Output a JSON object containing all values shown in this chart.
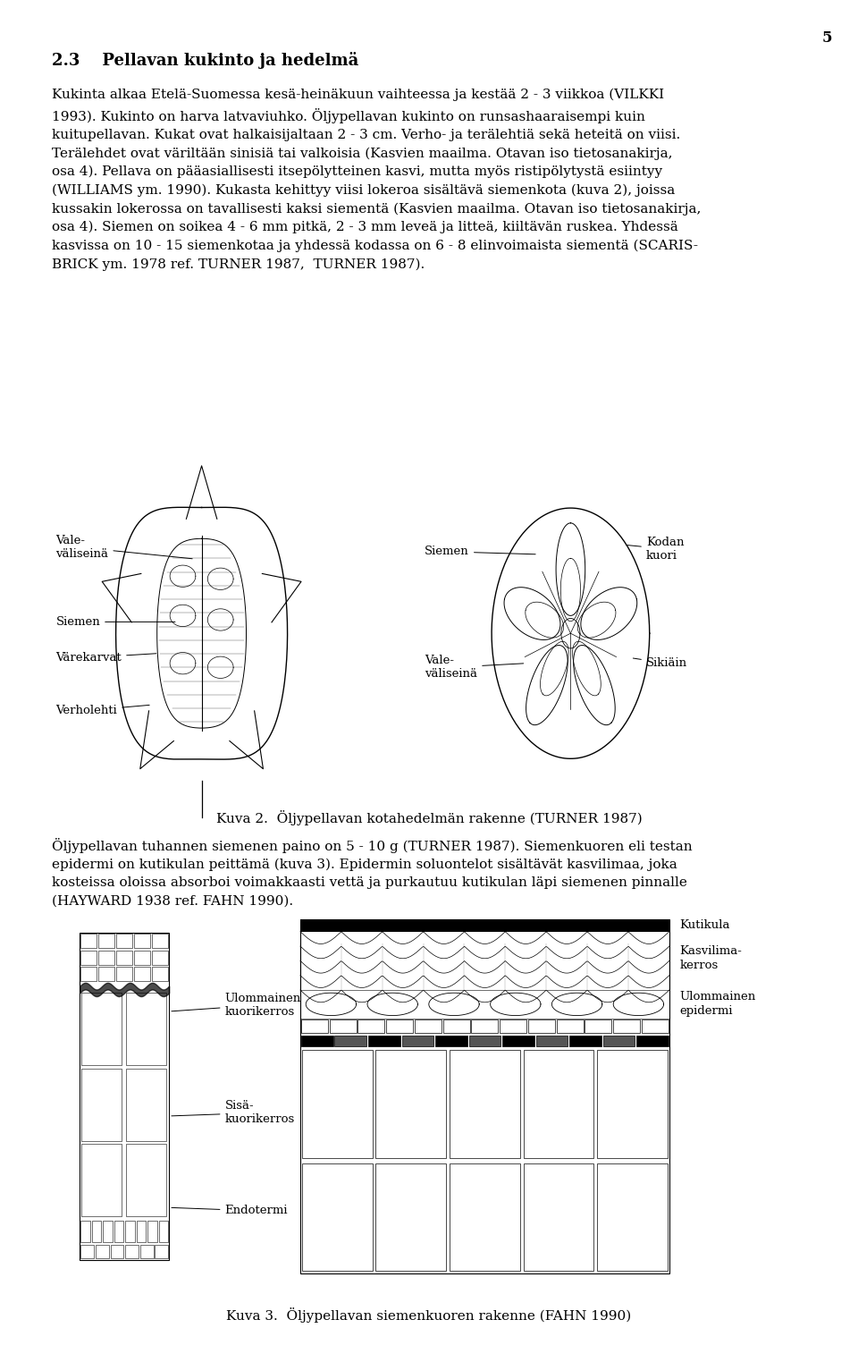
{
  "page_number": "5",
  "section_title": "2.3    Pellavan kukinto ja hedelmä",
  "paragraph1": "Kukinta alkaa Etelä-Suomessa kesä-heinäkuun vaihteessa ja kestää 2 - 3 viikkoa (VILKKI\n1993). Kukinto on harva latvaviuhko. Öljypellavan kukinto on runsashaaraisempi kuin\nkuitupellavan. Kukat ovat halkaisijaltaan 2 - 3 cm. Verho- ja terälehtiä sekä heteitä on viisi.\nTerälehdet ovat väriltään sinisiä tai valkoisia (Kasvien maailma. Otavan iso tietosanakirja,\nosa 4). Pellava on pääasiallisesti itsepölytteinen kasvi, mutta myös ristipölytystä esiintyy\n(WILLIAMS ym. 1990). Kukasta kehittyy viisi lokeroa sisältävä siemenkota (kuva 2), joissa\nkussakin lokerossa on tavallisesti kaksi siementä (Kasvien maailma. Otavan iso tietosanakirja,\nosa 4). Siemen on soikea 4 - 6 mm pitkä, 2 - 3 mm leveä ja litteä, kiiltävän ruskea. Yhdessä\nkasvissa on 10 - 15 siemenkotaa ja yhdessä kodassa on 6 - 8 elinvoimaista siementä (SCARIS-\nBRICK ym. 1978 ref. TURNER 1987,  TURNER 1987).",
  "figure2_caption": "Kuva 2.  Öljypellavan kotahedelmän rakenne (TURNER 1987)",
  "paragraph2": "Öljypellavan tuhannen siemenen paino on 5 - 10 g (TURNER 1987). Siemenkuoren eli testan\nepidermi on kutikulan peittämä (kuva 3). Epidermin soluontelot sisältävät kasvilimaa, joka\nkosteissa oloissa absorboi voimakkaasti vettä ja purkautuu kutikulan läpi siemenen pinnalle\n(HAYWARD 1938 ref. FAHN 1990).",
  "figure3_caption": "Kuva 3.  Öljypellavan siemenkuoren rakenne (FAHN 1990)",
  "bg_color": "#ffffff",
  "text_color": "#000000",
  "font_size_body": 11,
  "font_size_title": 13,
  "font_size_caption": 11
}
